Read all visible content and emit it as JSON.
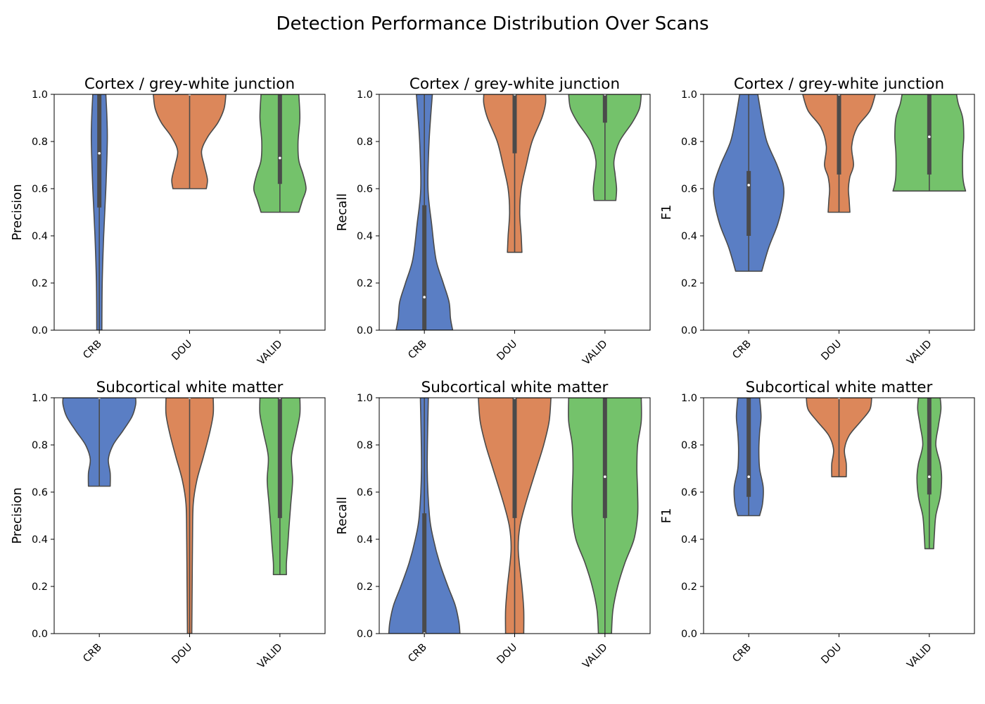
{
  "figure": {
    "title": "Detection Performance Distribution Over Scans"
  },
  "chart_data": [
    {
      "type": "violin",
      "title": "Cortex / grey-white junction",
      "ylabel": "Precision",
      "ylim": [
        0,
        1
      ],
      "yticks": [
        "0.0",
        "0.2",
        "0.4",
        "0.6",
        "0.8",
        "1.0"
      ],
      "categories": [
        "CRB",
        "DOU",
        "VALID"
      ],
      "violins": [
        {
          "category": "CRB",
          "color": "#5a7ec4",
          "min": 0.0,
          "max": 1.0,
          "q1": 0.52,
          "median": 0.75,
          "q3": 1.0,
          "density": [
            [
              0.0,
              0.07
            ],
            [
              0.2,
              0.08
            ],
            [
              0.4,
              0.12
            ],
            [
              0.6,
              0.18
            ],
            [
              0.8,
              0.22
            ],
            [
              0.9,
              0.21
            ],
            [
              1.0,
              0.18
            ]
          ]
        },
        {
          "category": "DOU",
          "color": "#dc875a",
          "min": 0.6,
          "max": 1.0,
          "q1": 1.0,
          "median": 1.0,
          "q3": 1.0,
          "density": [
            [
              0.6,
              0.46
            ],
            [
              0.64,
              0.49
            ],
            [
              0.7,
              0.4
            ],
            [
              0.76,
              0.33
            ],
            [
              0.82,
              0.5
            ],
            [
              0.88,
              0.78
            ],
            [
              0.94,
              0.95
            ],
            [
              1.0,
              1.0
            ]
          ]
        },
        {
          "category": "VALID",
          "color": "#74c26b",
          "min": 0.5,
          "max": 1.0,
          "q1": 0.62,
          "median": 0.73,
          "q3": 1.0,
          "density": [
            [
              0.5,
              0.52
            ],
            [
              0.55,
              0.62
            ],
            [
              0.6,
              0.72
            ],
            [
              0.66,
              0.64
            ],
            [
              0.72,
              0.52
            ],
            [
              0.8,
              0.5
            ],
            [
              0.9,
              0.55
            ],
            [
              1.0,
              0.52
            ]
          ]
        }
      ]
    },
    {
      "type": "violin",
      "title": "Cortex / grey-white junction",
      "ylabel": "Recall",
      "ylim": [
        0,
        1
      ],
      "yticks": [
        "0.0",
        "0.2",
        "0.4",
        "0.6",
        "0.8",
        "1.0"
      ],
      "categories": [
        "CRB",
        "DOU",
        "VALID"
      ],
      "violins": [
        {
          "category": "CRB",
          "color": "#5a7ec4",
          "min": 0.0,
          "max": 1.0,
          "q1": 0.0,
          "median": 0.14,
          "q3": 0.53,
          "density": [
            [
              0.0,
              0.78
            ],
            [
              0.05,
              0.72
            ],
            [
              0.12,
              0.68
            ],
            [
              0.2,
              0.52
            ],
            [
              0.3,
              0.32
            ],
            [
              0.45,
              0.2
            ],
            [
              0.6,
              0.1
            ],
            [
              0.8,
              0.13
            ],
            [
              1.0,
              0.22
            ]
          ]
        },
        {
          "category": "DOU",
          "color": "#dc875a",
          "min": 0.33,
          "max": 1.0,
          "q1": 0.75,
          "median": 1.0,
          "q3": 1.0,
          "density": [
            [
              0.33,
              0.2
            ],
            [
              0.4,
              0.18
            ],
            [
              0.5,
              0.14
            ],
            [
              0.6,
              0.18
            ],
            [
              0.7,
              0.32
            ],
            [
              0.8,
              0.48
            ],
            [
              0.9,
              0.75
            ],
            [
              0.96,
              0.85
            ],
            [
              1.0,
              0.85
            ]
          ]
        },
        {
          "category": "VALID",
          "color": "#74c26b",
          "min": 0.55,
          "max": 1.0,
          "q1": 0.88,
          "median": 1.0,
          "q3": 1.0,
          "density": [
            [
              0.55,
              0.3
            ],
            [
              0.6,
              0.32
            ],
            [
              0.66,
              0.28
            ],
            [
              0.72,
              0.25
            ],
            [
              0.8,
              0.4
            ],
            [
              0.88,
              0.75
            ],
            [
              0.94,
              0.95
            ],
            [
              1.0,
              1.0
            ]
          ]
        }
      ]
    },
    {
      "type": "violin",
      "title": "Cortex / grey-white junction",
      "ylabel": "F1",
      "ylim": [
        0,
        1
      ],
      "yticks": [
        "0.0",
        "0.2",
        "0.4",
        "0.6",
        "0.8",
        "1.0"
      ],
      "categories": [
        "CRB",
        "DOU",
        "VALID"
      ],
      "violins": [
        {
          "category": "CRB",
          "color": "#5a7ec4",
          "min": 0.25,
          "max": 1.0,
          "q1": 0.4,
          "median": 0.615,
          "q3": 0.675,
          "density": [
            [
              0.25,
              0.36
            ],
            [
              0.35,
              0.55
            ],
            [
              0.45,
              0.8
            ],
            [
              0.55,
              0.95
            ],
            [
              0.62,
              0.95
            ],
            [
              0.7,
              0.78
            ],
            [
              0.8,
              0.5
            ],
            [
              0.9,
              0.36
            ],
            [
              1.0,
              0.25
            ]
          ]
        },
        {
          "category": "DOU",
          "color": "#dc875a",
          "min": 0.5,
          "max": 1.0,
          "q1": 0.66,
          "median": 1.0,
          "q3": 1.0,
          "density": [
            [
              0.5,
              0.3
            ],
            [
              0.55,
              0.28
            ],
            [
              0.6,
              0.26
            ],
            [
              0.65,
              0.3
            ],
            [
              0.7,
              0.4
            ],
            [
              0.78,
              0.35
            ],
            [
              0.86,
              0.5
            ],
            [
              0.93,
              0.85
            ],
            [
              1.0,
              1.0
            ]
          ]
        },
        {
          "category": "VALID",
          "color": "#74c26b",
          "min": 0.59,
          "max": 1.0,
          "q1": 0.66,
          "median": 0.82,
          "q3": 1.0,
          "density": [
            [
              0.59,
              1.0
            ],
            [
              0.62,
              0.95
            ],
            [
              0.66,
              0.92
            ],
            [
              0.75,
              0.92
            ],
            [
              0.82,
              0.95
            ],
            [
              0.9,
              0.92
            ],
            [
              0.96,
              0.8
            ],
            [
              1.0,
              0.75
            ]
          ]
        }
      ]
    },
    {
      "type": "violin",
      "title": "Subcortical white matter",
      "ylabel": "Precision",
      "ylim": [
        0,
        1
      ],
      "yticks": [
        "0.0",
        "0.2",
        "0.4",
        "0.6",
        "0.8",
        "1.0"
      ],
      "categories": [
        "CRB",
        "DOU",
        "VALID"
      ],
      "violins": [
        {
          "category": "CRB",
          "color": "#5a7ec4",
          "min": 0.625,
          "max": 1.0,
          "q1": 1.0,
          "median": 1.0,
          "q3": 1.0,
          "density": [
            [
              0.625,
              0.3
            ],
            [
              0.68,
              0.3
            ],
            [
              0.74,
              0.25
            ],
            [
              0.8,
              0.38
            ],
            [
              0.86,
              0.65
            ],
            [
              0.92,
              0.9
            ],
            [
              0.97,
              1.0
            ],
            [
              1.0,
              1.0
            ]
          ]
        },
        {
          "category": "DOU",
          "color": "#dc875a",
          "min": 0.0,
          "max": 1.0,
          "q1": 1.0,
          "median": 1.0,
          "q3": 1.0,
          "density": [
            [
              0.0,
              0.06
            ],
            [
              0.2,
              0.07
            ],
            [
              0.4,
              0.08
            ],
            [
              0.55,
              0.1
            ],
            [
              0.65,
              0.2
            ],
            [
              0.75,
              0.38
            ],
            [
              0.85,
              0.55
            ],
            [
              0.93,
              0.65
            ],
            [
              1.0,
              0.65
            ]
          ]
        },
        {
          "category": "VALID",
          "color": "#74c26b",
          "min": 0.25,
          "max": 1.0,
          "q1": 0.49,
          "median": 1.0,
          "q3": 1.0,
          "density": [
            [
              0.25,
              0.18
            ],
            [
              0.3,
              0.18
            ],
            [
              0.38,
              0.22
            ],
            [
              0.45,
              0.25
            ],
            [
              0.55,
              0.3
            ],
            [
              0.65,
              0.35
            ],
            [
              0.75,
              0.32
            ],
            [
              0.85,
              0.45
            ],
            [
              0.93,
              0.55
            ],
            [
              1.0,
              0.55
            ]
          ]
        }
      ]
    },
    {
      "type": "violin",
      "title": "Subcortical white matter",
      "ylabel": "Recall",
      "ylim": [
        0,
        1
      ],
      "yticks": [
        "0.0",
        "0.2",
        "0.4",
        "0.6",
        "0.8",
        "1.0"
      ],
      "categories": [
        "CRB",
        "DOU",
        "VALID"
      ],
      "violins": [
        {
          "category": "CRB",
          "color": "#5a7ec4",
          "min": 0.0,
          "max": 1.0,
          "q1": 0.0,
          "median": 0.0,
          "q3": 0.51,
          "density": [
            [
              0.0,
              0.98
            ],
            [
              0.05,
              0.95
            ],
            [
              0.12,
              0.85
            ],
            [
              0.2,
              0.65
            ],
            [
              0.3,
              0.42
            ],
            [
              0.4,
              0.25
            ],
            [
              0.5,
              0.14
            ],
            [
              0.7,
              0.08
            ],
            [
              1.0,
              0.11
            ]
          ]
        },
        {
          "category": "DOU",
          "color": "#dc875a",
          "min": 0.0,
          "max": 1.0,
          "q1": 0.49,
          "median": 1.0,
          "q3": 1.0,
          "density": [
            [
              0.0,
              0.25
            ],
            [
              0.1,
              0.25
            ],
            [
              0.2,
              0.2
            ],
            [
              0.35,
              0.1
            ],
            [
              0.45,
              0.14
            ],
            [
              0.55,
              0.3
            ],
            [
              0.7,
              0.6
            ],
            [
              0.8,
              0.8
            ],
            [
              0.9,
              0.95
            ],
            [
              1.0,
              1.0
            ]
          ]
        },
        {
          "category": "VALID",
          "color": "#74c26b",
          "min": 0.0,
          "max": 1.0,
          "q1": 0.49,
          "median": 0.665,
          "q3": 1.0,
          "density": [
            [
              0.0,
              0.18
            ],
            [
              0.1,
              0.22
            ],
            [
              0.2,
              0.35
            ],
            [
              0.3,
              0.55
            ],
            [
              0.4,
              0.8
            ],
            [
              0.5,
              0.9
            ],
            [
              0.6,
              0.9
            ],
            [
              0.7,
              0.88
            ],
            [
              0.8,
              0.9
            ],
            [
              0.9,
              1.0
            ],
            [
              1.0,
              1.0
            ]
          ]
        }
      ]
    },
    {
      "type": "violin",
      "title": "Subcortical white matter",
      "ylabel": "F1",
      "ylim": [
        0,
        1
      ],
      "yticks": [
        "0.0",
        "0.2",
        "0.4",
        "0.6",
        "0.8",
        "1.0"
      ],
      "categories": [
        "CRB",
        "DOU",
        "VALID"
      ],
      "violins": [
        {
          "category": "CRB",
          "color": "#5a7ec4",
          "min": 0.5,
          "max": 1.0,
          "q1": 0.58,
          "median": 0.665,
          "q3": 1.0,
          "density": [
            [
              0.5,
              0.3
            ],
            [
              0.55,
              0.38
            ],
            [
              0.62,
              0.4
            ],
            [
              0.7,
              0.3
            ],
            [
              0.78,
              0.28
            ],
            [
              0.85,
              0.3
            ],
            [
              0.92,
              0.34
            ],
            [
              1.0,
              0.3
            ]
          ]
        },
        {
          "category": "DOU",
          "color": "#dc875a",
          "min": 0.665,
          "max": 1.0,
          "q1": 1.0,
          "median": 1.0,
          "q3": 1.0,
          "density": [
            [
              0.665,
              0.2
            ],
            [
              0.72,
              0.2
            ],
            [
              0.78,
              0.15
            ],
            [
              0.84,
              0.28
            ],
            [
              0.9,
              0.6
            ],
            [
              0.95,
              0.85
            ],
            [
              1.0,
              0.9
            ]
          ]
        },
        {
          "category": "VALID",
          "color": "#74c26b",
          "min": 0.36,
          "max": 1.0,
          "q1": 0.59,
          "median": 0.665,
          "q3": 1.0,
          "density": [
            [
              0.36,
              0.12
            ],
            [
              0.42,
              0.14
            ],
            [
              0.5,
              0.18
            ],
            [
              0.58,
              0.3
            ],
            [
              0.66,
              0.34
            ],
            [
              0.72,
              0.3
            ],
            [
              0.8,
              0.18
            ],
            [
              0.88,
              0.25
            ],
            [
              0.95,
              0.32
            ],
            [
              1.0,
              0.3
            ]
          ]
        }
      ]
    }
  ]
}
